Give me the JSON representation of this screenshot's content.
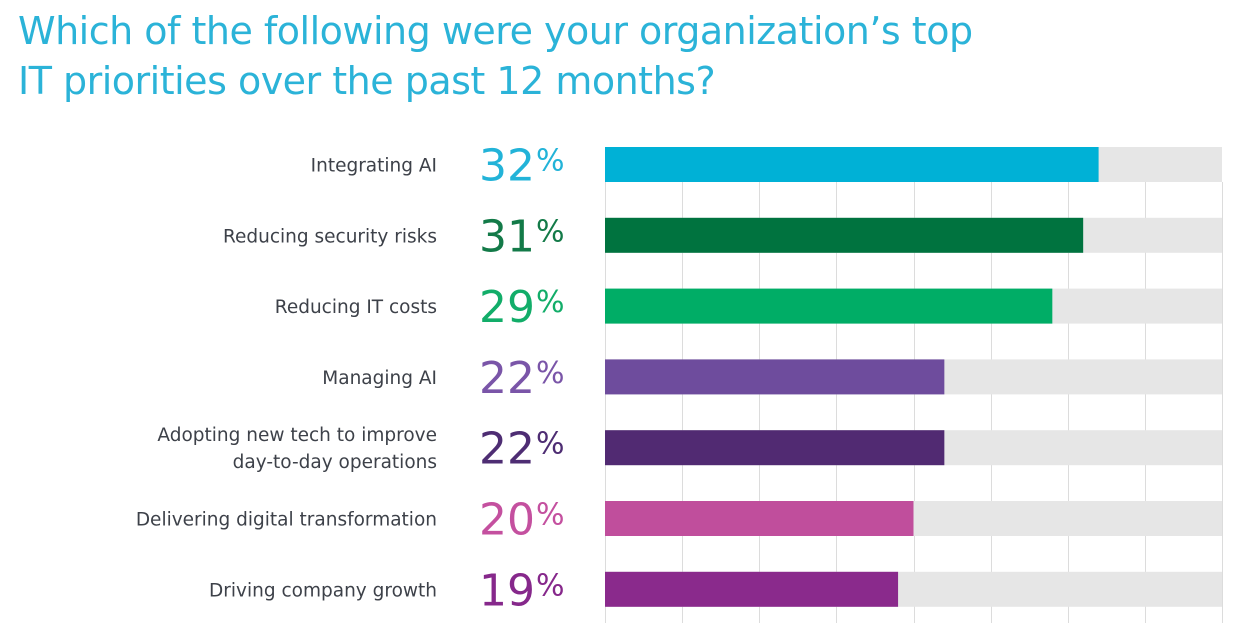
{
  "chart_data": {
    "type": "bar",
    "orientation": "horizontal",
    "title": "Which of the following were your organization’s top IT priorities over the past 12 months?",
    "title_lines": [
      "Which of the following were your organization’s top",
      "IT priorities over the past 12 months?"
    ],
    "xlabel": "",
    "ylabel": "",
    "xlim": [
      0,
      40
    ],
    "grid_step": 5,
    "grid": true,
    "unit": "%",
    "categories": [
      [
        "Integrating AI"
      ],
      [
        "Reducing security risks"
      ],
      [
        "Reducing IT costs"
      ],
      [
        "Managing AI"
      ],
      [
        "Adopting new tech to improve",
        "day-to-day operations"
      ],
      [
        "Delivering digital transformation"
      ],
      [
        "Driving company growth"
      ]
    ],
    "values": [
      32,
      31,
      29,
      22,
      22,
      20,
      19
    ],
    "value_labels": [
      "32",
      "31",
      "29",
      "22",
      "22",
      "20",
      "19"
    ],
    "colors": [
      "#00b1d6",
      "#00733f",
      "#00ad66",
      "#6e4c9d",
      "#512a72",
      "#c04e9c",
      "#8a2a8c"
    ],
    "label_colors": [
      "#22b3d8",
      "#137a48",
      "#12ad69",
      "#7a55a8",
      "#4e2d73",
      "#c4509f",
      "#86288b"
    ],
    "track_color": "#e6e6e6",
    "grid_color": "#dcdcdc",
    "title_color": "#2bb3d8",
    "label_text_color": "#3d4149"
  }
}
